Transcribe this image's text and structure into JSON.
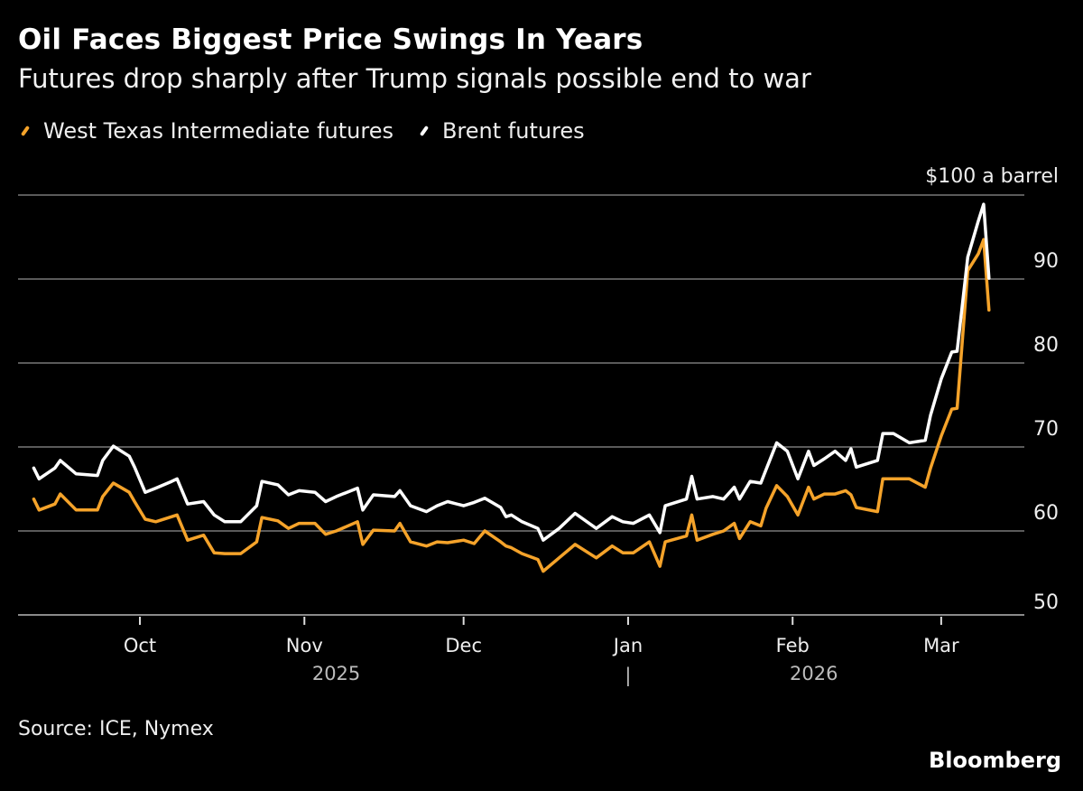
{
  "chart_data": {
    "type": "line",
    "title": "Oil Faces Biggest Price Swings In Years",
    "subtitle": "Futures drop sharply after Trump signals possible end to war",
    "ylabel": "$100 a barrel",
    "ylim": [
      50,
      100
    ],
    "yticks": [
      50,
      60,
      70,
      80,
      90
    ],
    "xlim": [
      "2025-09-11",
      "2026-03-10"
    ],
    "xticks": [
      {
        "date": "2025-10-01",
        "label": "Oct"
      },
      {
        "date": "2025-11-01",
        "label": "Nov"
      },
      {
        "date": "2025-12-01",
        "label": "Dec"
      },
      {
        "date": "2026-01-01",
        "label": "Jan"
      },
      {
        "date": "2026-02-01",
        "label": "Feb"
      },
      {
        "date": "2026-03-01",
        "label": "Mar"
      }
    ],
    "year_labels": [
      {
        "date": "2025-11-07",
        "label": "2025"
      },
      {
        "date": "2026-02-05",
        "label": "2026"
      }
    ],
    "year_separator": "|",
    "grid": true,
    "legend_position": "top-left",
    "x": [
      "2025-09-11",
      "2025-09-12",
      "2025-09-15",
      "2025-09-16",
      "2025-09-19",
      "2025-09-23",
      "2025-09-24",
      "2025-09-26",
      "2025-09-29",
      "2025-09-30",
      "2025-10-02",
      "2025-10-04",
      "2025-10-07",
      "2025-10-08",
      "2025-10-10",
      "2025-10-13",
      "2025-10-15",
      "2025-10-17",
      "2025-10-20",
      "2025-10-23",
      "2025-10-24",
      "2025-10-27",
      "2025-10-29",
      "2025-10-31",
      "2025-11-03",
      "2025-11-05",
      "2025-11-07",
      "2025-11-11",
      "2025-11-12",
      "2025-11-14",
      "2025-11-18",
      "2025-11-19",
      "2025-11-21",
      "2025-11-24",
      "2025-11-26",
      "2025-11-28",
      "2025-12-01",
      "2025-12-03",
      "2025-12-05",
      "2025-12-08",
      "2025-12-09",
      "2025-12-10",
      "2025-12-12",
      "2025-12-15",
      "2025-12-16",
      "2025-12-19",
      "2025-12-22",
      "2025-12-26",
      "2025-12-29",
      "2025-12-31",
      "2026-01-02",
      "2026-01-05",
      "2026-01-07",
      "2026-01-08",
      "2026-01-12",
      "2026-01-13",
      "2026-01-14",
      "2026-01-17",
      "2026-01-19",
      "2026-01-21",
      "2026-01-22",
      "2026-01-24",
      "2026-01-26",
      "2026-01-27",
      "2026-01-29",
      "2026-01-31",
      "2026-02-02",
      "2026-02-04",
      "2026-02-05",
      "2026-02-07",
      "2026-02-09",
      "2026-02-11",
      "2026-02-12",
      "2026-02-13",
      "2026-02-17",
      "2026-02-18",
      "2026-02-20",
      "2026-02-23",
      "2026-02-26",
      "2026-02-27",
      "2026-03-01",
      "2026-03-03",
      "2026-03-04",
      "2026-03-06",
      "2026-03-08",
      "2026-03-09",
      "2026-03-10"
    ],
    "series": [
      {
        "name": "West Texas Intermediate futures",
        "color": "#f5a32a",
        "values": [
          63.8,
          62.5,
          63.2,
          64.4,
          62.5,
          62.5,
          64.1,
          65.7,
          64.6,
          63.5,
          61.4,
          61.1,
          61.7,
          61.9,
          58.9,
          59.5,
          57.4,
          57.3,
          57.3,
          58.7,
          61.6,
          61.2,
          60.3,
          60.9,
          60.9,
          59.6,
          60.0,
          61.1,
          58.4,
          60.1,
          60.0,
          60.9,
          58.7,
          58.2,
          58.7,
          58.6,
          58.9,
          58.5,
          60.0,
          58.7,
          58.2,
          58.0,
          57.3,
          56.6,
          55.2,
          56.8,
          58.4,
          56.8,
          58.2,
          57.4,
          57.4,
          58.7,
          55.8,
          58.7,
          59.4,
          61.9,
          58.9,
          59.6,
          60.0,
          60.9,
          59.1,
          61.1,
          60.6,
          62.7,
          65.4,
          64.1,
          61.9,
          65.2,
          63.8,
          64.4,
          64.4,
          64.8,
          64.3,
          62.8,
          62.3,
          66.2,
          66.2,
          66.2,
          65.2,
          67.5,
          71.3,
          74.5,
          74.6,
          91.0,
          93.0,
          94.7,
          86.3
        ]
      },
      {
        "name": "Brent futures",
        "color": "#ffffff",
        "values": [
          67.5,
          66.2,
          67.5,
          68.4,
          66.8,
          66.6,
          68.4,
          70.1,
          68.9,
          67.6,
          64.6,
          65.1,
          65.9,
          66.2,
          63.2,
          63.5,
          61.9,
          61.1,
          61.1,
          63.0,
          65.9,
          65.5,
          64.3,
          64.8,
          64.6,
          63.5,
          64.1,
          65.1,
          62.5,
          64.3,
          64.1,
          64.8,
          63.0,
          62.3,
          63.0,
          63.5,
          63.0,
          63.4,
          63.9,
          62.8,
          61.7,
          61.9,
          61.1,
          60.3,
          58.9,
          60.3,
          62.1,
          60.3,
          61.7,
          61.1,
          60.9,
          61.9,
          59.8,
          63.0,
          63.8,
          66.5,
          63.8,
          64.1,
          63.8,
          65.2,
          63.8,
          65.9,
          65.7,
          67.3,
          70.5,
          69.5,
          66.2,
          69.5,
          67.8,
          68.6,
          69.5,
          68.4,
          69.8,
          67.6,
          68.4,
          71.6,
          71.6,
          70.5,
          70.8,
          73.8,
          78.1,
          81.3,
          81.4,
          92.6,
          96.9,
          98.9,
          90.1
        ]
      }
    ],
    "source": "Source: ICE, Nymex",
    "brand": "Bloomberg"
  }
}
